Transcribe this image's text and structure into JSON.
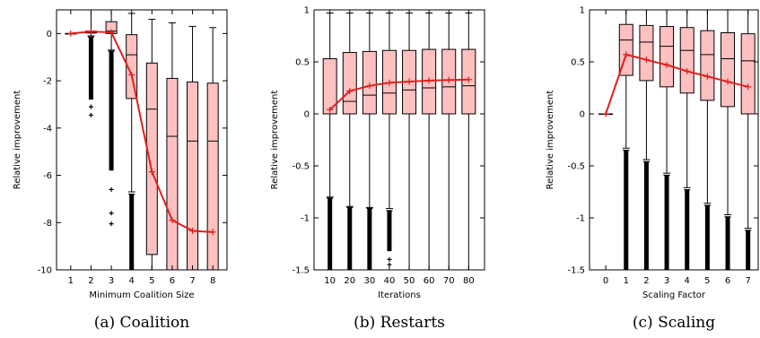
{
  "chart_data": [
    {
      "id": "coalition",
      "type": "box",
      "caption": "(a) Coalition",
      "xlabel": "Minimum Coalition Size",
      "ylabel": "Relative improvement",
      "xlim": [
        0.3,
        8.7
      ],
      "ylim": [
        -10,
        1
      ],
      "xticks": [
        1,
        2,
        3,
        4,
        5,
        6,
        7,
        8
      ],
      "xticklabels": [
        "1",
        "2",
        "3",
        "4",
        "5",
        "6",
        "7",
        "8"
      ],
      "yticks": [
        0,
        -2,
        -4,
        -6,
        -8,
        -10
      ],
      "yticklabels": [
        "0",
        "-2",
        "-4",
        "-6",
        "-8",
        "-10"
      ],
      "boxes": [
        {
          "x": 1,
          "q1": 0,
          "median": 0,
          "q3": 0,
          "whisker_low": 0,
          "whisker_high": 0,
          "outliers_from": null,
          "outliers_to": null,
          "sparse": []
        },
        {
          "x": 2,
          "q1": 0.02,
          "median": 0.05,
          "q3": 0.1,
          "whisker_low": -0.1,
          "whisker_high": 1,
          "outliers_from": -2.8,
          "outliers_to": -0.15,
          "sparse": [
            -3.1,
            -3.45
          ]
        },
        {
          "x": 3,
          "q1": 0,
          "median": 0.1,
          "q3": 0.5,
          "whisker_low": -0.7,
          "whisker_high": 1,
          "outliers_from": -5.8,
          "outliers_to": -0.75,
          "sparse": [
            -6.6,
            -7.6,
            -8.05
          ]
        },
        {
          "x": 4,
          "q1": -2.75,
          "median": -0.9,
          "q3": -0.05,
          "whisker_low": -6.7,
          "whisker_high": 0.85,
          "outliers_from": -10,
          "outliers_to": -6.8,
          "sparse": []
        },
        {
          "x": 5,
          "q1": -9.35,
          "median": -3.2,
          "q3": -1.25,
          "whisker_low": -10,
          "whisker_high": 0.6,
          "outliers_from": null,
          "outliers_to": null,
          "sparse": []
        },
        {
          "x": 6,
          "q1": -10,
          "median": -4.35,
          "q3": -1.9,
          "whisker_low": -10,
          "whisker_high": 0.45,
          "outliers_from": null,
          "outliers_to": null,
          "sparse": []
        },
        {
          "x": 7,
          "q1": -10,
          "median": -4.55,
          "q3": -2.05,
          "whisker_low": -10,
          "whisker_high": 0.3,
          "outliers_from": null,
          "outliers_to": null,
          "sparse": []
        },
        {
          "x": 8,
          "q1": -10,
          "median": -4.55,
          "q3": -2.1,
          "whisker_low": -10,
          "whisker_high": 0.25,
          "outliers_from": null,
          "outliers_to": null,
          "sparse": []
        }
      ],
      "mean_line": {
        "x": [
          1,
          2,
          3,
          4,
          5,
          6,
          7,
          8
        ],
        "y": [
          0,
          0.08,
          0.05,
          -1.75,
          -5.85,
          -7.9,
          -8.35,
          -8.4
        ]
      }
    },
    {
      "id": "restarts",
      "type": "box",
      "caption": "(b) Restarts",
      "xlabel": "Iterations",
      "ylabel": "Relative improvement",
      "xlim": [
        2,
        88
      ],
      "ylim": [
        -1.5,
        1
      ],
      "xticks": [
        10,
        20,
        30,
        40,
        50,
        60,
        70,
        80
      ],
      "xticklabels": [
        "10",
        "20",
        "30",
        "40",
        "50",
        "60",
        "70",
        "80"
      ],
      "yticks": [
        1,
        0.5,
        0,
        -0.5,
        -1,
        -1.5
      ],
      "yticklabels": [
        "1",
        "0.5",
        "0",
        "-0.5",
        "-1",
        "-1.5"
      ],
      "boxes": [
        {
          "x": 10,
          "q1": 0,
          "median": 0,
          "q3": 0.53,
          "whisker_low": -0.8,
          "whisker_high": 0.97,
          "outliers_from": -1.5,
          "outliers_to": -0.81,
          "sparse": []
        },
        {
          "x": 20,
          "q1": 0,
          "median": 0.12,
          "q3": 0.59,
          "whisker_low": -0.89,
          "whisker_high": 0.97,
          "outliers_from": -1.5,
          "outliers_to": -0.9,
          "sparse": []
        },
        {
          "x": 30,
          "q1": 0,
          "median": 0.18,
          "q3": 0.6,
          "whisker_low": -0.9,
          "whisker_high": 0.97,
          "outliers_from": -1.5,
          "outliers_to": -0.91,
          "sparse": []
        },
        {
          "x": 40,
          "q1": 0,
          "median": 0.2,
          "q3": 0.61,
          "whisker_low": -0.91,
          "whisker_high": 0.97,
          "outliers_from": -1.32,
          "outliers_to": -0.93,
          "sparse": [
            -1.4,
            -1.45
          ]
        },
        {
          "x": 50,
          "q1": 0,
          "median": 0.23,
          "q3": 0.61,
          "whisker_low": -1.5,
          "whisker_high": 0.97,
          "outliers_from": null,
          "outliers_to": null,
          "sparse": []
        },
        {
          "x": 60,
          "q1": 0,
          "median": 0.25,
          "q3": 0.62,
          "whisker_low": -1.5,
          "whisker_high": 0.97,
          "outliers_from": null,
          "outliers_to": null,
          "sparse": []
        },
        {
          "x": 70,
          "q1": 0,
          "median": 0.26,
          "q3": 0.62,
          "whisker_low": -1.5,
          "whisker_high": 0.97,
          "outliers_from": null,
          "outliers_to": null,
          "sparse": []
        },
        {
          "x": 80,
          "q1": 0,
          "median": 0.27,
          "q3": 0.62,
          "whisker_low": -1.5,
          "whisker_high": 0.97,
          "outliers_from": null,
          "outliers_to": null,
          "sparse": []
        }
      ],
      "mean_line": {
        "x": [
          10,
          20,
          30,
          40,
          50,
          60,
          70,
          80
        ],
        "y": [
          0.04,
          0.22,
          0.27,
          0.3,
          0.31,
          0.32,
          0.325,
          0.33
        ]
      }
    },
    {
      "id": "scaling",
      "type": "box",
      "caption": "(c) Scaling",
      "xlabel": "Scaling Factor",
      "ylabel": "Relative improvement",
      "xlim": [
        -0.8,
        7.5
      ],
      "ylim": [
        -1.5,
        1
      ],
      "xticks": [
        0,
        1,
        2,
        3,
        4,
        5,
        6,
        7
      ],
      "xticklabels": [
        "0",
        "1",
        "2",
        "3",
        "4",
        "5",
        "6",
        "7"
      ],
      "yticks": [
        1,
        0.5,
        0,
        -0.5,
        -1,
        -1.5
      ],
      "yticklabels": [
        "1",
        "0.5",
        "0",
        "-0.5",
        "-1",
        "-1.5"
      ],
      "boxes": [
        {
          "x": 0,
          "q1": 0,
          "median": 0,
          "q3": 0,
          "whisker_low": 0,
          "whisker_high": 0,
          "outliers_from": null,
          "outliers_to": null,
          "sparse": []
        },
        {
          "x": 1,
          "q1": 0.37,
          "median": 0.71,
          "q3": 0.86,
          "whisker_low": -0.33,
          "whisker_high": 1,
          "outliers_from": -1.5,
          "outliers_to": -0.35,
          "sparse": []
        },
        {
          "x": 2,
          "q1": 0.32,
          "median": 0.69,
          "q3": 0.85,
          "whisker_low": -0.44,
          "whisker_high": 1,
          "outliers_from": -1.5,
          "outliers_to": -0.46,
          "sparse": []
        },
        {
          "x": 3,
          "q1": 0.26,
          "median": 0.65,
          "q3": 0.84,
          "whisker_low": -0.57,
          "whisker_high": 1,
          "outliers_from": -1.5,
          "outliers_to": -0.59,
          "sparse": []
        },
        {
          "x": 4,
          "q1": 0.2,
          "median": 0.61,
          "q3": 0.83,
          "whisker_low": -0.71,
          "whisker_high": 1,
          "outliers_from": -1.5,
          "outliers_to": -0.73,
          "sparse": []
        },
        {
          "x": 5,
          "q1": 0.13,
          "median": 0.57,
          "q3": 0.8,
          "whisker_low": -0.86,
          "whisker_high": 1,
          "outliers_from": -1.5,
          "outliers_to": -0.88,
          "sparse": []
        },
        {
          "x": 6,
          "q1": 0.07,
          "median": 0.53,
          "q3": 0.78,
          "whisker_low": -0.97,
          "whisker_high": 1,
          "outliers_from": -1.5,
          "outliers_to": -0.99,
          "sparse": []
        },
        {
          "x": 7,
          "q1": 0,
          "median": 0.51,
          "q3": 0.77,
          "whisker_low": -1.1,
          "whisker_high": 1,
          "outliers_from": -1.5,
          "outliers_to": -1.12,
          "sparse": []
        }
      ],
      "mean_line": {
        "x": [
          0,
          1,
          2,
          3,
          4,
          5,
          6,
          7
        ],
        "y": [
          0,
          0.57,
          0.52,
          0.47,
          0.41,
          0.36,
          0.31,
          0.26
        ]
      }
    }
  ],
  "style": {
    "box_fill": "#ffc0c0",
    "box_stroke": "#000000",
    "mean_line_color": "#e0201c",
    "outlier_color": "#000000",
    "axis_color": "#000000"
  }
}
